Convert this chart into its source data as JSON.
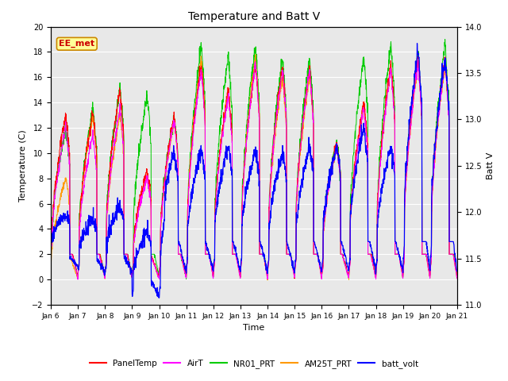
{
  "title": "Temperature and Batt V",
  "xlabel": "Time",
  "ylabel_left": "Temperature (C)",
  "ylabel_right": "Batt V",
  "ylim_left": [
    -2,
    20
  ],
  "ylim_right": [
    11.0,
    14.0
  ],
  "x_tick_labels": [
    "Jan 6",
    "Jan 7",
    "Jan 8",
    "Jan 9",
    "Jan 10",
    "Jan 11",
    "Jan 12",
    "Jan 13",
    "Jan 14",
    "Jan 15",
    "Jan 16",
    "Jan 17",
    "Jan 18",
    "Jan 19",
    "Jan 20",
    "Jan 21"
  ],
  "annotation_text": "EE_met",
  "colors": {
    "PanelTemp": "#ff0000",
    "AirT": "#ff00ff",
    "NR01_PRT": "#00cc00",
    "AM25T_PRT": "#ff9900",
    "batt_volt": "#0000ff"
  },
  "legend_labels": [
    "PanelTemp",
    "AirT",
    "NR01_PRT",
    "AM25T_PRT",
    "batt_volt"
  ],
  "background_color": "#ffffff",
  "plot_bg_color": "#e8e8e8",
  "grid_color": "#ffffff"
}
